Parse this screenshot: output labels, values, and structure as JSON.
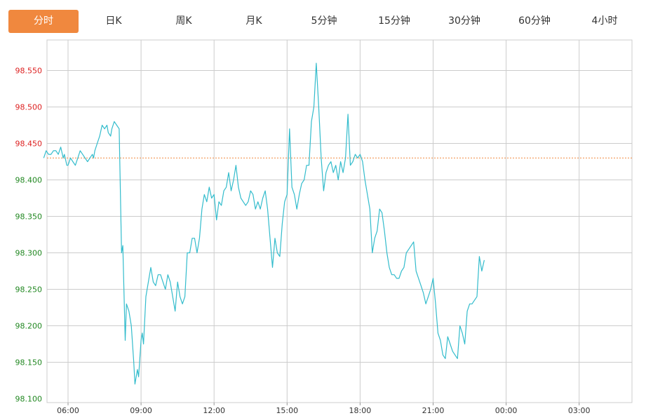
{
  "tabs": [
    {
      "label": "分时",
      "active": true
    },
    {
      "label": "日K",
      "active": false
    },
    {
      "label": "周K",
      "active": false
    },
    {
      "label": "月K",
      "active": false
    },
    {
      "label": "5分钟",
      "active": false
    },
    {
      "label": "15分钟",
      "active": false
    },
    {
      "label": "30分钟",
      "active": false
    },
    {
      "label": "60分钟",
      "active": false
    },
    {
      "label": "4小时",
      "active": false
    }
  ],
  "colors": {
    "active_tab": "#f0883e",
    "line": "#33bccc",
    "reference_line": "#f0883e",
    "up_label": "#dd2222",
    "down_label": "#228822",
    "grid": "#cccccc"
  },
  "chart_data": {
    "type": "line",
    "title": "",
    "xlabel": "",
    "ylabel": "",
    "ylim": [
      98.1,
      98.55
    ],
    "reference_value": 98.43,
    "y_ticks": [
      "98.550",
      "98.500",
      "98.450",
      "98.400",
      "98.350",
      "98.300",
      "98.250",
      "98.200",
      "98.150",
      "98.100"
    ],
    "x_ticks": [
      "06:00",
      "09:00",
      "12:00",
      "15:00",
      "18:00",
      "21:00",
      "00:00",
      "03:00"
    ],
    "x_range_hours": [
      5.0,
      29.0
    ],
    "grid": true,
    "series": [
      {
        "name": "",
        "points": [
          [
            5.0,
            98.43
          ],
          [
            5.1,
            98.44
          ],
          [
            5.2,
            98.435
          ],
          [
            5.3,
            98.435
          ],
          [
            5.4,
            98.44
          ],
          [
            5.5,
            98.44
          ],
          [
            5.6,
            98.435
          ],
          [
            5.7,
            98.445
          ],
          [
            5.8,
            98.43
          ],
          [
            5.85,
            98.435
          ],
          [
            5.95,
            98.42
          ],
          [
            6.0,
            98.42
          ],
          [
            6.1,
            98.43
          ],
          [
            6.2,
            98.425
          ],
          [
            6.3,
            98.42
          ],
          [
            6.4,
            98.43
          ],
          [
            6.5,
            98.44
          ],
          [
            6.6,
            98.435
          ],
          [
            6.7,
            98.43
          ],
          [
            6.8,
            98.425
          ],
          [
            6.9,
            98.43
          ],
          [
            7.0,
            98.435
          ],
          [
            7.05,
            98.43
          ],
          [
            7.1,
            98.44
          ],
          [
            7.2,
            98.45
          ],
          [
            7.3,
            98.46
          ],
          [
            7.4,
            98.475
          ],
          [
            7.5,
            98.47
          ],
          [
            7.6,
            98.475
          ],
          [
            7.65,
            98.465
          ],
          [
            7.75,
            98.46
          ],
          [
            7.8,
            98.47
          ],
          [
            7.9,
            98.48
          ],
          [
            8.0,
            98.475
          ],
          [
            8.1,
            98.47
          ],
          [
            8.2,
            98.3
          ],
          [
            8.25,
            98.31
          ],
          [
            8.35,
            98.18
          ],
          [
            8.4,
            98.23
          ],
          [
            8.5,
            98.22
          ],
          [
            8.6,
            98.2
          ],
          [
            8.7,
            98.15
          ],
          [
            8.75,
            98.12
          ],
          [
            8.85,
            98.14
          ],
          [
            8.9,
            98.13
          ],
          [
            9.0,
            98.18
          ],
          [
            9.05,
            98.19
          ],
          [
            9.1,
            98.175
          ],
          [
            9.2,
            98.24
          ],
          [
            9.3,
            98.26
          ],
          [
            9.4,
            98.28
          ],
          [
            9.5,
            98.26
          ],
          [
            9.6,
            98.255
          ],
          [
            9.7,
            98.27
          ],
          [
            9.8,
            98.27
          ],
          [
            9.9,
            98.26
          ],
          [
            10.0,
            98.25
          ],
          [
            10.1,
            98.27
          ],
          [
            10.2,
            98.26
          ],
          [
            10.3,
            98.24
          ],
          [
            10.4,
            98.22
          ],
          [
            10.5,
            98.26
          ],
          [
            10.6,
            98.24
          ],
          [
            10.7,
            98.23
          ],
          [
            10.8,
            98.24
          ],
          [
            10.9,
            98.3
          ],
          [
            11.0,
            98.3
          ],
          [
            11.1,
            98.32
          ],
          [
            11.2,
            98.32
          ],
          [
            11.3,
            98.3
          ],
          [
            11.4,
            98.32
          ],
          [
            11.5,
            98.36
          ],
          [
            11.6,
            98.38
          ],
          [
            11.7,
            98.37
          ],
          [
            11.8,
            98.39
          ],
          [
            11.9,
            98.375
          ],
          [
            12.0,
            98.38
          ],
          [
            12.1,
            98.345
          ],
          [
            12.2,
            98.37
          ],
          [
            12.3,
            98.365
          ],
          [
            12.4,
            98.385
          ],
          [
            12.5,
            98.39
          ],
          [
            12.6,
            98.41
          ],
          [
            12.7,
            98.385
          ],
          [
            12.8,
            98.4
          ],
          [
            12.9,
            98.42
          ],
          [
            13.0,
            98.39
          ],
          [
            13.1,
            98.375
          ],
          [
            13.2,
            98.37
          ],
          [
            13.3,
            98.365
          ],
          [
            13.4,
            98.37
          ],
          [
            13.5,
            98.385
          ],
          [
            13.6,
            98.38
          ],
          [
            13.7,
            98.36
          ],
          [
            13.8,
            98.37
          ],
          [
            13.9,
            98.36
          ],
          [
            14.0,
            98.375
          ],
          [
            14.1,
            98.385
          ],
          [
            14.2,
            98.36
          ],
          [
            14.3,
            98.32
          ],
          [
            14.4,
            98.28
          ],
          [
            14.5,
            98.32
          ],
          [
            14.6,
            98.3
          ],
          [
            14.7,
            98.295
          ],
          [
            14.8,
            98.34
          ],
          [
            14.9,
            98.37
          ],
          [
            15.0,
            98.38
          ],
          [
            15.1,
            98.47
          ],
          [
            15.2,
            98.39
          ],
          [
            15.3,
            98.38
          ],
          [
            15.4,
            98.36
          ],
          [
            15.5,
            98.38
          ],
          [
            15.6,
            98.395
          ],
          [
            15.7,
            98.4
          ],
          [
            15.8,
            98.42
          ],
          [
            15.9,
            98.42
          ],
          [
            16.0,
            98.48
          ],
          [
            16.1,
            98.5
          ],
          [
            16.2,
            98.56
          ],
          [
            16.3,
            98.5
          ],
          [
            16.4,
            98.43
          ],
          [
            16.5,
            98.385
          ],
          [
            16.6,
            98.41
          ],
          [
            16.7,
            98.42
          ],
          [
            16.8,
            98.425
          ],
          [
            16.9,
            98.41
          ],
          [
            17.0,
            98.42
          ],
          [
            17.1,
            98.4
          ],
          [
            17.2,
            98.425
          ],
          [
            17.3,
            98.41
          ],
          [
            17.4,
            98.43
          ],
          [
            17.5,
            98.49
          ],
          [
            17.6,
            98.42
          ],
          [
            17.7,
            98.425
          ],
          [
            17.8,
            98.435
          ],
          [
            17.9,
            98.43
          ],
          [
            18.0,
            98.435
          ],
          [
            18.1,
            98.425
          ],
          [
            18.2,
            98.4
          ],
          [
            18.3,
            98.38
          ],
          [
            18.4,
            98.36
          ],
          [
            18.5,
            98.3
          ],
          [
            18.6,
            98.32
          ],
          [
            18.7,
            98.33
          ],
          [
            18.8,
            98.36
          ],
          [
            18.9,
            98.355
          ],
          [
            19.0,
            98.33
          ],
          [
            19.1,
            98.3
          ],
          [
            19.2,
            98.28
          ],
          [
            19.3,
            98.27
          ],
          [
            19.4,
            98.27
          ],
          [
            19.5,
            98.265
          ],
          [
            19.6,
            98.265
          ],
          [
            19.7,
            98.275
          ],
          [
            19.8,
            98.28
          ],
          [
            19.9,
            98.3
          ],
          [
            20.0,
            98.305
          ],
          [
            20.1,
            98.31
          ],
          [
            20.2,
            98.315
          ],
          [
            20.3,
            98.275
          ],
          [
            20.4,
            98.265
          ],
          [
            20.5,
            98.255
          ],
          [
            20.6,
            98.245
          ],
          [
            20.7,
            98.23
          ],
          [
            20.8,
            98.24
          ],
          [
            20.9,
            98.25
          ],
          [
            21.0,
            98.265
          ],
          [
            21.1,
            98.23
          ],
          [
            21.2,
            98.19
          ],
          [
            21.3,
            98.18
          ],
          [
            21.4,
            98.16
          ],
          [
            21.5,
            98.155
          ],
          [
            21.6,
            98.185
          ],
          [
            21.7,
            98.175
          ],
          [
            21.8,
            98.165
          ],
          [
            21.9,
            98.16
          ],
          [
            22.0,
            98.155
          ],
          [
            22.1,
            98.2
          ],
          [
            22.2,
            98.19
          ],
          [
            22.3,
            98.175
          ],
          [
            22.4,
            98.22
          ],
          [
            22.5,
            98.23
          ],
          [
            22.6,
            98.23
          ],
          [
            22.7,
            98.235
          ],
          [
            22.8,
            98.24
          ],
          [
            22.9,
            98.295
          ],
          [
            23.0,
            98.275
          ],
          [
            23.1,
            98.29
          ]
        ]
      }
    ]
  }
}
